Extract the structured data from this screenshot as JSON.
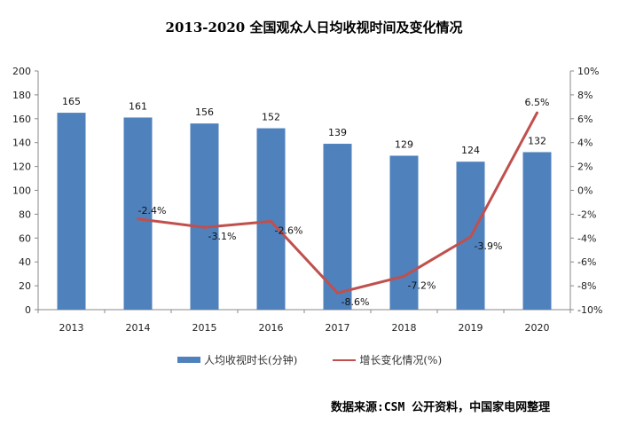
{
  "chart_data": {
    "type": "bar+line",
    "title": "2013-2020 全国观众人日均收视时间及变化情况",
    "categories": [
      "2013",
      "2014",
      "2015",
      "2016",
      "2017",
      "2018",
      "2019",
      "2020"
    ],
    "series": [
      {
        "name": "人均收视时长(分钟)",
        "type": "bar",
        "axis": "left",
        "color": "#4f81bd",
        "values": [
          165,
          161,
          156,
          152,
          139,
          129,
          124,
          132
        ],
        "labels": [
          "165",
          "161",
          "156",
          "152",
          "139",
          "129",
          "124",
          "132"
        ]
      },
      {
        "name": "增长变化情况(%)",
        "type": "line",
        "axis": "right",
        "color": "#c0504d",
        "values": [
          null,
          -2.4,
          -3.1,
          -2.6,
          -8.6,
          -7.2,
          -3.9,
          6.5
        ],
        "labels": [
          "",
          "-2.4%",
          "-3.1%",
          "-2.6%",
          "-8.6%",
          "-7.2%",
          "-3.9%",
          "6.5%"
        ]
      }
    ],
    "ylim": [
      0,
      200
    ],
    "yticks": [
      "0",
      "20",
      "40",
      "60",
      "80",
      "100",
      "120",
      "140",
      "160",
      "180",
      "200"
    ],
    "y2lim": [
      -10,
      10
    ],
    "y2ticks": [
      "-10%",
      "-8%",
      "-6%",
      "-4%",
      "-2%",
      "0%",
      "2%",
      "4%",
      "6%",
      "8%",
      "10%"
    ],
    "grid": false,
    "legend": "bottom"
  },
  "source": "数据来源:CSM 公开资料，中国家电网整理"
}
